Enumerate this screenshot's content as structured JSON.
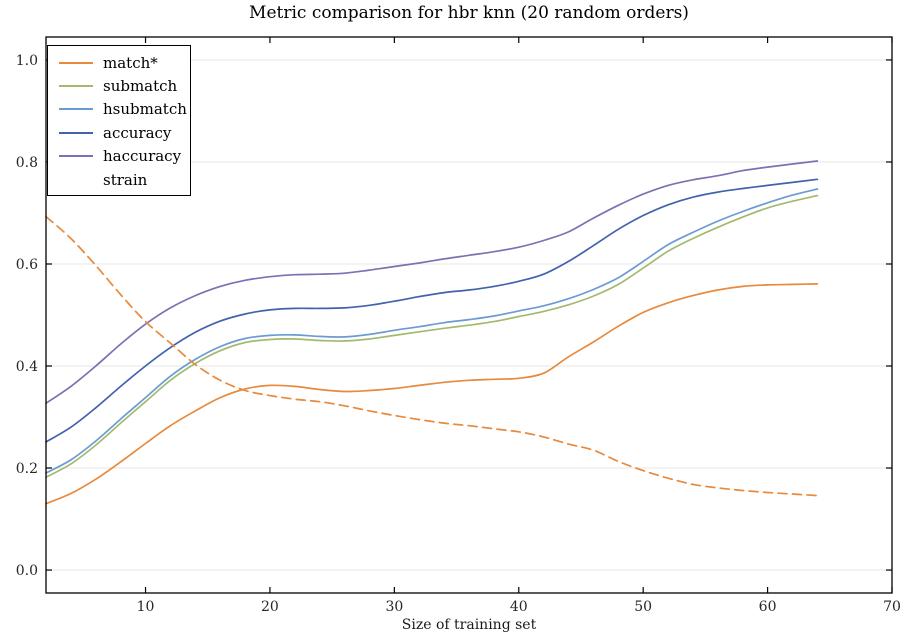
{
  "title": "Metric comparison for hbr knn (20 random orders)",
  "colors": {
    "orange": "#e8893c",
    "green": "#a3ba6e",
    "light_blue": "#6b9bd2",
    "blue": "#4262ad",
    "purple": "#7f6fb4",
    "grid": "#e7e7e7",
    "spine": "#000000",
    "tick_label": "#262626"
  },
  "chart_data": {
    "type": "line",
    "title": "Metric comparison for hbr knn (20 random orders)",
    "xlabel": "Size of training set",
    "ylabel": "",
    "xlim": [
      2,
      70
    ],
    "ylim": [
      -0.045,
      1.045
    ],
    "grid": "horizontal gridlines only, light gray",
    "legend_position": "upper-left",
    "xticks": {
      "values": [
        10,
        20,
        30,
        40,
        50,
        60,
        70
      ],
      "labels": [
        "10",
        "20",
        "30",
        "40",
        "50",
        "60",
        "70"
      ]
    },
    "yticks": {
      "values": [
        0.0,
        0.2,
        0.4,
        0.6,
        0.8,
        1.0
      ],
      "labels": [
        "0.0",
        "0.2",
        "0.4",
        "0.6",
        "0.8",
        "1.0"
      ]
    },
    "x": [
      2,
      4,
      6,
      8,
      10,
      12,
      14,
      16,
      18,
      20,
      22,
      24,
      26,
      28,
      30,
      32,
      34,
      36,
      38,
      40,
      42,
      44,
      46,
      48,
      50,
      52,
      54,
      56,
      58,
      60,
      62,
      64
    ],
    "series": [
      {
        "name": "match*",
        "color": "#e8893c",
        "dash": "solid",
        "values": [
          0.13,
          0.15,
          0.178,
          0.212,
          0.248,
          0.283,
          0.312,
          0.338,
          0.355,
          0.362,
          0.36,
          0.354,
          0.35,
          0.352,
          0.356,
          0.362,
          0.368,
          0.372,
          0.374,
          0.376,
          0.386,
          0.418,
          0.447,
          0.478,
          0.505,
          0.524,
          0.538,
          0.549,
          0.556,
          0.559,
          0.56,
          0.561
        ]
      },
      {
        "name": "submatch",
        "color": "#a3ba6e",
        "dash": "solid",
        "values": [
          0.182,
          0.208,
          0.245,
          0.288,
          0.33,
          0.372,
          0.405,
          0.43,
          0.446,
          0.452,
          0.453,
          0.45,
          0.449,
          0.453,
          0.46,
          0.467,
          0.474,
          0.48,
          0.487,
          0.497,
          0.507,
          0.52,
          0.537,
          0.56,
          0.592,
          0.625,
          0.65,
          0.672,
          0.692,
          0.71,
          0.723,
          0.734
        ]
      },
      {
        "name": "hsubmatch",
        "color": "#6b9bd2",
        "dash": "solid",
        "values": [
          0.19,
          0.216,
          0.253,
          0.296,
          0.338,
          0.38,
          0.413,
          0.438,
          0.454,
          0.46,
          0.461,
          0.458,
          0.457,
          0.462,
          0.47,
          0.477,
          0.485,
          0.491,
          0.498,
          0.508,
          0.518,
          0.532,
          0.55,
          0.573,
          0.605,
          0.638,
          0.662,
          0.684,
          0.703,
          0.72,
          0.735,
          0.747
        ]
      },
      {
        "name": "accuracy",
        "color": "#4262ad",
        "dash": "solid",
        "values": [
          0.251,
          0.28,
          0.318,
          0.36,
          0.4,
          0.436,
          0.466,
          0.488,
          0.502,
          0.51,
          0.513,
          0.513,
          0.514,
          0.519,
          0.527,
          0.536,
          0.544,
          0.549,
          0.556,
          0.566,
          0.58,
          0.605,
          0.636,
          0.668,
          0.695,
          0.716,
          0.731,
          0.741,
          0.748,
          0.754,
          0.76,
          0.766
        ]
      },
      {
        "name": "haccuracy",
        "color": "#7f6fb4",
        "dash": "solid",
        "values": [
          0.327,
          0.36,
          0.4,
          0.443,
          0.482,
          0.514,
          0.538,
          0.556,
          0.568,
          0.575,
          0.579,
          0.58,
          0.582,
          0.588,
          0.595,
          0.602,
          0.61,
          0.617,
          0.624,
          0.633,
          0.646,
          0.663,
          0.69,
          0.715,
          0.737,
          0.754,
          0.765,
          0.773,
          0.783,
          0.79,
          0.796,
          0.802
        ]
      },
      {
        "name": "strain",
        "color": "#e8893c",
        "dash": "dashed",
        "values": [
          0.693,
          0.65,
          0.597,
          0.54,
          0.487,
          0.445,
          0.403,
          0.372,
          0.352,
          0.342,
          0.335,
          0.33,
          0.322,
          0.312,
          0.303,
          0.295,
          0.288,
          0.283,
          0.277,
          0.271,
          0.261,
          0.247,
          0.235,
          0.213,
          0.195,
          0.18,
          0.168,
          0.161,
          0.156,
          0.152,
          0.149,
          0.146
        ]
      }
    ]
  }
}
